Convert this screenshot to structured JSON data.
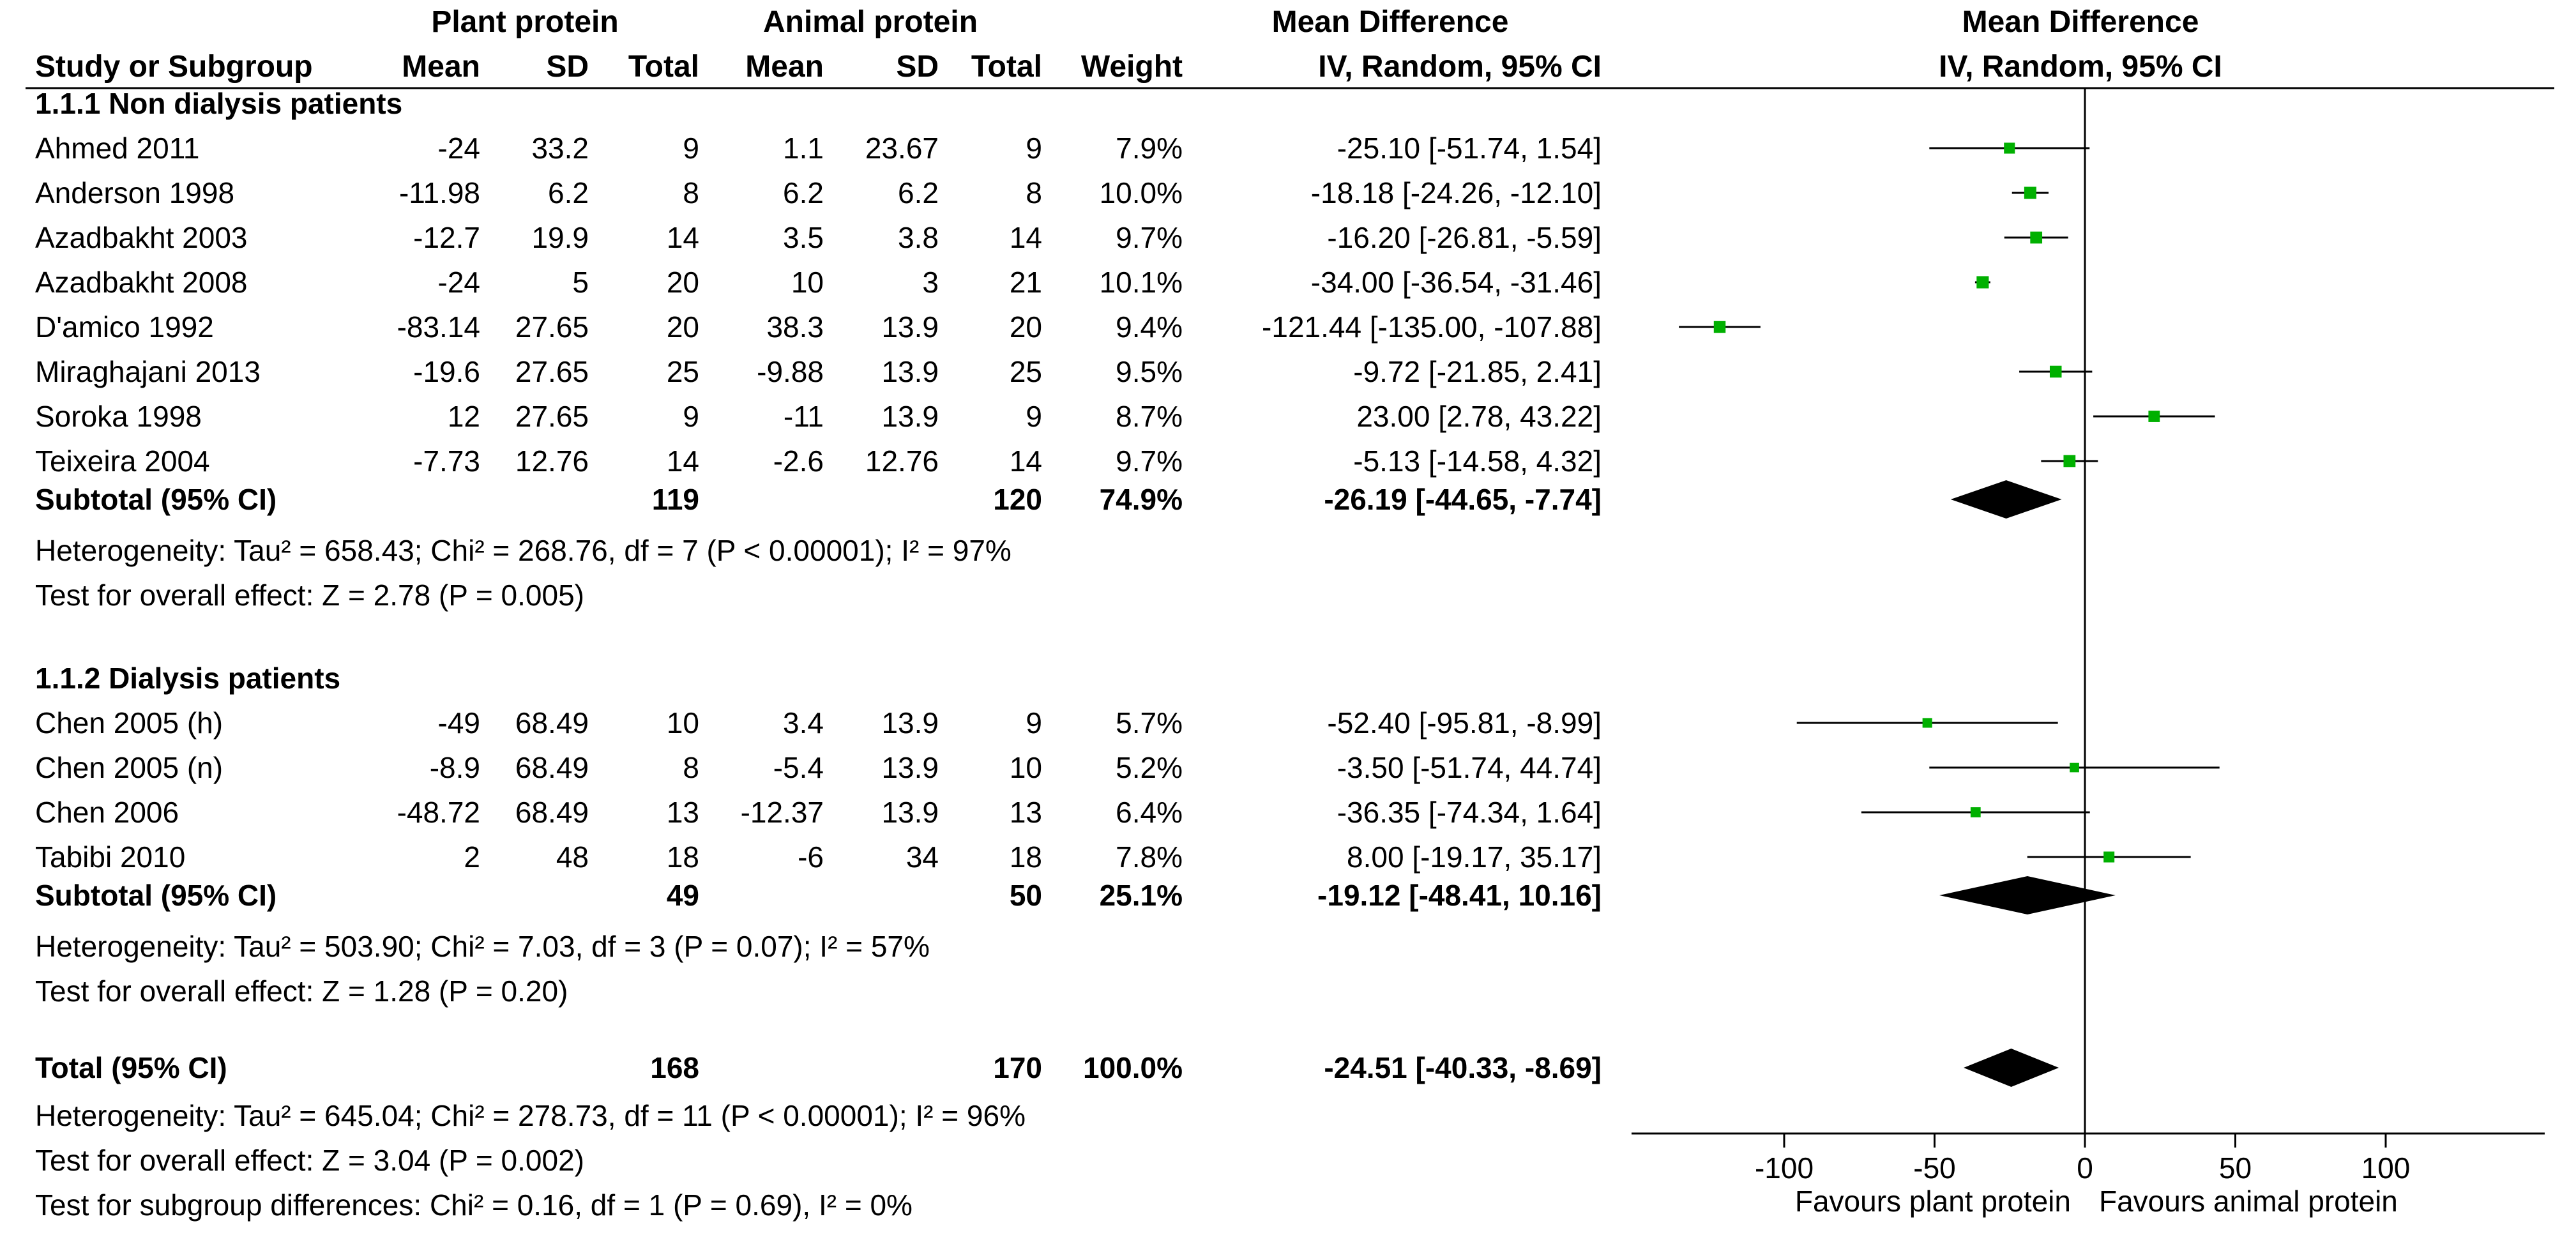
{
  "header": {
    "plant_group": "Plant protein",
    "animal_group": "Animal protein",
    "md_title": "Mean Difference",
    "study_col": "Study or Subgroup",
    "mean_col": "Mean",
    "sd_col": "SD",
    "total_col": "Total",
    "weight_col": "Weight",
    "method": "IV, Random, 95% CI"
  },
  "chart_data": {
    "type": "forest",
    "xlim": [
      -150,
      150
    ],
    "xticks": [
      "-100",
      "-50",
      "0",
      "50",
      "100"
    ],
    "xtick_values": [
      -100,
      -50,
      0,
      50,
      100
    ],
    "xlabel_left": "Favours plant protein",
    "xlabel_right": "Favours animal protein",
    "accent_color": "#00b000",
    "subgroups": [
      {
        "title": "1.1.1 Non dialysis patients",
        "studies": [
          {
            "name": "Ahmed 2011",
            "plant_mean": "-24",
            "plant_sd": "33.2",
            "plant_total": "9",
            "animal_mean": "1.1",
            "animal_sd": "23.67",
            "animal_total": "9",
            "weight": "7.9%",
            "ci_text": "-25.10 [-51.74, 1.54]",
            "md": -25.1,
            "lo": -51.74,
            "hi": 1.54,
            "w": 7.9
          },
          {
            "name": "Anderson 1998",
            "plant_mean": "-11.98",
            "plant_sd": "6.2",
            "plant_total": "8",
            "animal_mean": "6.2",
            "animal_sd": "6.2",
            "animal_total": "8",
            "weight": "10.0%",
            "ci_text": "-18.18 [-24.26, -12.10]",
            "md": -18.18,
            "lo": -24.26,
            "hi": -12.1,
            "w": 10.0
          },
          {
            "name": "Azadbakht 2003",
            "plant_mean": "-12.7",
            "plant_sd": "19.9",
            "plant_total": "14",
            "animal_mean": "3.5",
            "animal_sd": "3.8",
            "animal_total": "14",
            "weight": "9.7%",
            "ci_text": "-16.20 [-26.81, -5.59]",
            "md": -16.2,
            "lo": -26.81,
            "hi": -5.59,
            "w": 9.7
          },
          {
            "name": "Azadbakht 2008",
            "plant_mean": "-24",
            "plant_sd": "5",
            "plant_total": "20",
            "animal_mean": "10",
            "animal_sd": "3",
            "animal_total": "21",
            "weight": "10.1%",
            "ci_text": "-34.00 [-36.54, -31.46]",
            "md": -34.0,
            "lo": -36.54,
            "hi": -31.46,
            "w": 10.1
          },
          {
            "name": "D'amico 1992",
            "plant_mean": "-83.14",
            "plant_sd": "27.65",
            "plant_total": "20",
            "animal_mean": "38.3",
            "animal_sd": "13.9",
            "animal_total": "20",
            "weight": "9.4%",
            "ci_text": "-121.44 [-135.00, -107.88]",
            "md": -121.44,
            "lo": -135.0,
            "hi": -107.88,
            "w": 9.4
          },
          {
            "name": "Miraghajani 2013",
            "plant_mean": "-19.6",
            "plant_sd": "27.65",
            "plant_total": "25",
            "animal_mean": "-9.88",
            "animal_sd": "13.9",
            "animal_total": "25",
            "weight": "9.5%",
            "ci_text": "-9.72 [-21.85, 2.41]",
            "md": -9.72,
            "lo": -21.85,
            "hi": 2.41,
            "w": 9.5
          },
          {
            "name": "Soroka 1998",
            "plant_mean": "12",
            "plant_sd": "27.65",
            "plant_total": "9",
            "animal_mean": "-11",
            "animal_sd": "13.9",
            "animal_total": "9",
            "weight": "8.7%",
            "ci_text": "23.00 [2.78, 43.22]",
            "md": 23.0,
            "lo": 2.78,
            "hi": 43.22,
            "w": 8.7
          },
          {
            "name": "Teixeira 2004",
            "plant_mean": "-7.73",
            "plant_sd": "12.76",
            "plant_total": "14",
            "animal_mean": "-2.6",
            "animal_sd": "12.76",
            "animal_total": "14",
            "weight": "9.7%",
            "ci_text": "-5.13 [-14.58, 4.32]",
            "md": -5.13,
            "lo": -14.58,
            "hi": 4.32,
            "w": 9.7
          }
        ],
        "subtotal": {
          "label": "Subtotal (95% CI)",
          "plant_total": "119",
          "animal_total": "120",
          "weight": "74.9%",
          "ci_text": "-26.19 [-44.65, -7.74]",
          "md": -26.19,
          "lo": -44.65,
          "hi": -7.74
        },
        "heterogeneity": "Heterogeneity: Tau² = 658.43; Chi² = 268.76, df = 7 (P < 0.00001); I² = 97%",
        "overall": "Test for overall effect: Z = 2.78 (P = 0.005)"
      },
      {
        "title": "1.1.2 Dialysis patients",
        "studies": [
          {
            "name": "Chen 2005 (h)",
            "plant_mean": "-49",
            "plant_sd": "68.49",
            "plant_total": "10",
            "animal_mean": "3.4",
            "animal_sd": "13.9",
            "animal_total": "9",
            "weight": "5.7%",
            "ci_text": "-52.40 [-95.81, -8.99]",
            "md": -52.4,
            "lo": -95.81,
            "hi": -8.99,
            "w": 5.7
          },
          {
            "name": "Chen 2005 (n)",
            "plant_mean": "-8.9",
            "plant_sd": "68.49",
            "plant_total": "8",
            "animal_mean": "-5.4",
            "animal_sd": "13.9",
            "animal_total": "10",
            "weight": "5.2%",
            "ci_text": "-3.50 [-51.74, 44.74]",
            "md": -3.5,
            "lo": -51.74,
            "hi": 44.74,
            "w": 5.2
          },
          {
            "name": "Chen 2006",
            "plant_mean": "-48.72",
            "plant_sd": "68.49",
            "plant_total": "13",
            "animal_mean": "-12.37",
            "animal_sd": "13.9",
            "animal_total": "13",
            "weight": "6.4%",
            "ci_text": "-36.35 [-74.34, 1.64]",
            "md": -36.35,
            "lo": -74.34,
            "hi": 1.64,
            "w": 6.4
          },
          {
            "name": "Tabibi 2010",
            "plant_mean": "2",
            "plant_sd": "48",
            "plant_total": "18",
            "animal_mean": "-6",
            "animal_sd": "34",
            "animal_total": "18",
            "weight": "7.8%",
            "ci_text": "8.00 [-19.17, 35.17]",
            "md": 8.0,
            "lo": -19.17,
            "hi": 35.17,
            "w": 7.8
          }
        ],
        "subtotal": {
          "label": "Subtotal (95% CI)",
          "plant_total": "49",
          "animal_total": "50",
          "weight": "25.1%",
          "ci_text": "-19.12 [-48.41, 10.16]",
          "md": -19.12,
          "lo": -48.41,
          "hi": 10.16
        },
        "heterogeneity": "Heterogeneity: Tau² = 503.90; Chi² = 7.03, df = 3 (P = 0.07); I² = 57%",
        "overall": "Test for overall effect: Z = 1.28 (P = 0.20)"
      }
    ],
    "total": {
      "label": "Total (95% CI)",
      "plant_total": "168",
      "animal_total": "170",
      "weight": "100.0%",
      "ci_text": "-24.51 [-40.33, -8.69]",
      "md": -24.51,
      "lo": -40.33,
      "hi": -8.69
    },
    "total_heterogeneity": "Heterogeneity: Tau² = 645.04; Chi² = 278.73, df = 11 (P < 0.00001); I² = 96%",
    "total_overall": "Test for overall effect: Z = 3.04 (P = 0.002)",
    "subgroup_diff": "Test for subgroup differences: Chi² = 0.16, df = 1 (P = 0.69), I² = 0%"
  }
}
